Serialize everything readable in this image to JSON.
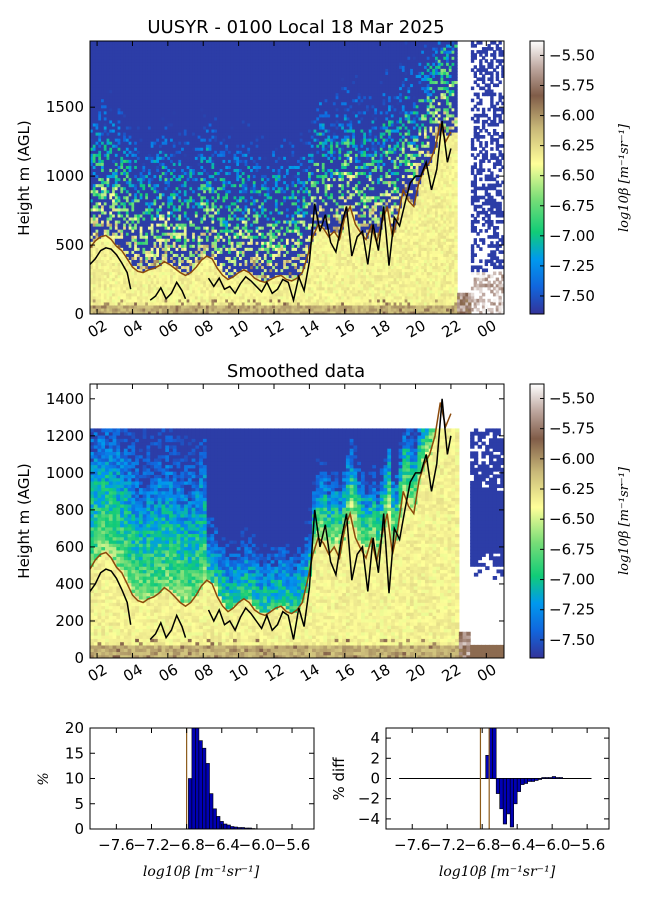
{
  "figure": {
    "title": "UUSYR - 0100 Local 18 Mar 2025"
  },
  "colors": {
    "bl_brown": "#8b4a0c",
    "bl_black": "#000000",
    "hist_bar": "#0000b4",
    "vline": "#8b5a1a"
  },
  "chart_data": [
    {
      "type": "heatmap",
      "panel": "raw",
      "title": "UUSYR - 0100 Local 18 Mar 2025",
      "ylabel": "Height m (AGL)",
      "xlabel": "",
      "x_ticks": [
        "02",
        "04",
        "06",
        "08",
        "10",
        "12",
        "14",
        "16",
        "18",
        "20",
        "22",
        "00"
      ],
      "x_tick_hours": [
        2,
        4,
        6,
        8,
        10,
        12,
        14,
        16,
        18,
        20,
        22,
        24
      ],
      "x_range_hours": [
        1.6,
        25.0
      ],
      "y_ticks": [
        "0",
        "500",
        "1000",
        "1500"
      ],
      "y_tick_values": [
        0,
        500,
        1000,
        1500
      ],
      "ylim": [
        0,
        1980
      ],
      "colorbar": {
        "label": "log10β [m⁻¹sr⁻¹]",
        "ticks": [
          "-5.50",
          "-5.75",
          "-6.00",
          "-6.25",
          "-6.50",
          "-6.75",
          "-7.00",
          "-7.25",
          "-7.50"
        ],
        "range": [
          -7.65,
          -5.38
        ],
        "colormap": "terrain"
      },
      "series": [
        {
          "name": "",
          "color": "#8b4a0c",
          "x": [
            1.6,
            1.9,
            2.2,
            2.5,
            2.8,
            3.1,
            3.4,
            3.7,
            4.0,
            4.3,
            4.6,
            4.9,
            5.2,
            5.5,
            5.8,
            6.1,
            6.4,
            6.7,
            7.0,
            7.3,
            7.6,
            7.9,
            8.2,
            8.5,
            8.8,
            9.1,
            9.4,
            9.7,
            10.0,
            10.3,
            10.6,
            10.9,
            11.2,
            11.5,
            11.8,
            12.1,
            12.4,
            12.7,
            13.0,
            13.3,
            13.6,
            13.9,
            14.2,
            14.5,
            14.8,
            15.1,
            15.4,
            15.7,
            16.0,
            16.3,
            16.6,
            16.9,
            17.2,
            17.5,
            17.8,
            18.1,
            18.4,
            18.7,
            19.0,
            19.3,
            19.6,
            19.9,
            20.2,
            20.5,
            20.8,
            21.1,
            21.4,
            21.7,
            22.0
          ],
          "y": [
            480,
            530,
            560,
            570,
            540,
            490,
            460,
            400,
            340,
            310,
            300,
            320,
            330,
            350,
            380,
            360,
            330,
            300,
            280,
            300,
            340,
            390,
            420,
            400,
            330,
            280,
            250,
            270,
            300,
            320,
            300,
            260,
            240,
            230,
            250,
            270,
            280,
            250,
            240,
            260,
            300,
            420,
            560,
            650,
            620,
            560,
            600,
            540,
            700,
            780,
            650,
            590,
            540,
            640,
            520,
            660,
            780,
            560,
            700,
            900,
            820,
            780,
            960,
            1050,
            1100,
            1200,
            1380,
            1250,
            1320
          ]
        },
        {
          "name": "",
          "color": "#000000",
          "x": [
            1.6,
            1.9,
            2.2,
            2.5,
            2.8,
            3.1,
            3.4,
            3.7,
            3.9,
            5.0,
            5.3,
            5.6,
            5.9,
            6.2,
            6.5,
            6.8,
            7.0,
            8.3,
            8.6,
            8.9,
            9.2,
            9.5,
            9.8,
            10.1,
            10.4,
            10.7,
            11.0,
            11.3,
            11.6,
            11.9,
            12.2,
            12.5,
            12.8,
            13.1,
            13.4,
            13.7,
            14.0,
            14.3,
            14.6,
            14.9,
            15.2,
            15.5,
            15.8,
            16.1,
            16.4,
            16.7,
            17.0,
            17.3,
            17.6,
            17.9,
            18.2,
            18.5,
            18.8,
            19.1,
            19.4,
            19.7,
            20.0,
            20.3,
            20.6,
            20.9,
            21.2,
            21.5,
            21.8,
            22.0
          ],
          "y": [
            360,
            400,
            460,
            480,
            470,
            430,
            370,
            300,
            180,
            100,
            130,
            190,
            110,
            150,
            230,
            170,
            110,
            260,
            200,
            260,
            180,
            200,
            150,
            220,
            270,
            240,
            200,
            160,
            230,
            150,
            180,
            250,
            230,
            100,
            270,
            170,
            380,
            800,
            600,
            720,
            520,
            450,
            640,
            780,
            420,
            560,
            600,
            360,
            650,
            460,
            780,
            350,
            700,
            640,
            800,
            950,
            1000,
            1000,
            1100,
            900,
            1050,
            1400,
            1100,
            1200
          ]
        }
      ]
    },
    {
      "type": "heatmap",
      "panel": "smoothed",
      "title": "Smoothed data",
      "ylabel": "Height m (AGL)",
      "xlabel": "",
      "x_ticks": [
        "02",
        "04",
        "06",
        "08",
        "10",
        "12",
        "14",
        "16",
        "18",
        "20",
        "22",
        "00"
      ],
      "x_tick_hours": [
        2,
        4,
        6,
        8,
        10,
        12,
        14,
        16,
        18,
        20,
        22,
        24
      ],
      "x_range_hours": [
        1.6,
        25.0
      ],
      "y_ticks": [
        "0",
        "200",
        "400",
        "600",
        "800",
        "1000",
        "1200",
        "1400"
      ],
      "y_tick_values": [
        0,
        200,
        400,
        600,
        800,
        1000,
        1200,
        1400
      ],
      "ylim": [
        0,
        1480
      ],
      "data_top": 1240,
      "colorbar": {
        "label": "log10β [m⁻¹sr⁻¹]",
        "ticks": [
          "-5.50",
          "-5.75",
          "-6.00",
          "-6.25",
          "-6.50",
          "-6.75",
          "-7.00",
          "-7.25",
          "-7.50"
        ],
        "range": [
          -7.65,
          -5.38
        ],
        "colormap": "terrain"
      }
    },
    {
      "type": "bar",
      "panel": "histogram",
      "title": "",
      "ylabel": "%",
      "xlabel": "log10β [m⁻¹sr⁻¹]",
      "x_ticks": [
        "-7.6",
        "-7.2",
        "-6.8",
        "-6.4",
        "-6.0",
        "-5.6"
      ],
      "x_tick_values": [
        -7.6,
        -7.2,
        -6.8,
        -6.4,
        -6.0,
        -5.6
      ],
      "xlim": [
        -7.9,
        -5.35
      ],
      "y_ticks": [
        "0",
        "5",
        "10",
        "15",
        "20"
      ],
      "y_tick_values": [
        0,
        5,
        10,
        15,
        20
      ],
      "ylim": [
        0,
        20
      ],
      "vline": -6.8,
      "bins": [
        -6.78,
        -6.74,
        -6.7,
        -6.66,
        -6.62,
        -6.58,
        -6.54,
        -6.5,
        -6.46,
        -6.42,
        -6.38,
        -6.34,
        -6.3,
        -6.26,
        -6.22,
        -6.18,
        -6.14,
        -6.1,
        -6.06
      ],
      "values": [
        10,
        20,
        20,
        17.5,
        16,
        13,
        7,
        4,
        2.5,
        1.5,
        1,
        0.8,
        0.5,
        0.4,
        0.3,
        0.3,
        0.2,
        0.2,
        0.1
      ]
    },
    {
      "type": "bar",
      "panel": "difference",
      "title": "",
      "ylabel": "% diff",
      "xlabel": "log10β [m⁻¹sr⁻¹]",
      "x_ticks": [
        "-7.6",
        "-7.2",
        "-6.8",
        "-6.4",
        "-6.0",
        "-5.6"
      ],
      "x_tick_values": [
        -7.6,
        -7.2,
        -6.8,
        -6.4,
        -6.0,
        -5.6
      ],
      "xlim": [
        -7.9,
        -5.35
      ],
      "y_ticks": [
        "4",
        "2",
        "0",
        "−2",
        "−4"
      ],
      "y_tick_values": [
        4,
        2,
        0,
        -2,
        -4
      ],
      "ylim": [
        -5,
        5
      ],
      "vlines": [
        -6.82,
        -6.72
      ],
      "bins": [
        -6.76,
        -6.72,
        -6.68,
        -6.64,
        -6.6,
        -6.56,
        -6.52,
        -6.48,
        -6.44,
        -6.4,
        -6.36,
        -6.32,
        -6.28,
        -6.24,
        -6.2,
        -6.16,
        -6.12,
        -6.08,
        -6.04,
        -6.0,
        -5.96,
        -5.92
      ],
      "values": [
        2.3,
        5,
        5,
        -1.5,
        -3,
        -4.5,
        -3.5,
        -4.8,
        -2.5,
        -1.3,
        -0.6,
        -0.5,
        -0.3,
        -0.3,
        -0.2,
        -0.1,
        0.1,
        0.1,
        0.1,
        0.2,
        0.1,
        0.1
      ]
    }
  ]
}
